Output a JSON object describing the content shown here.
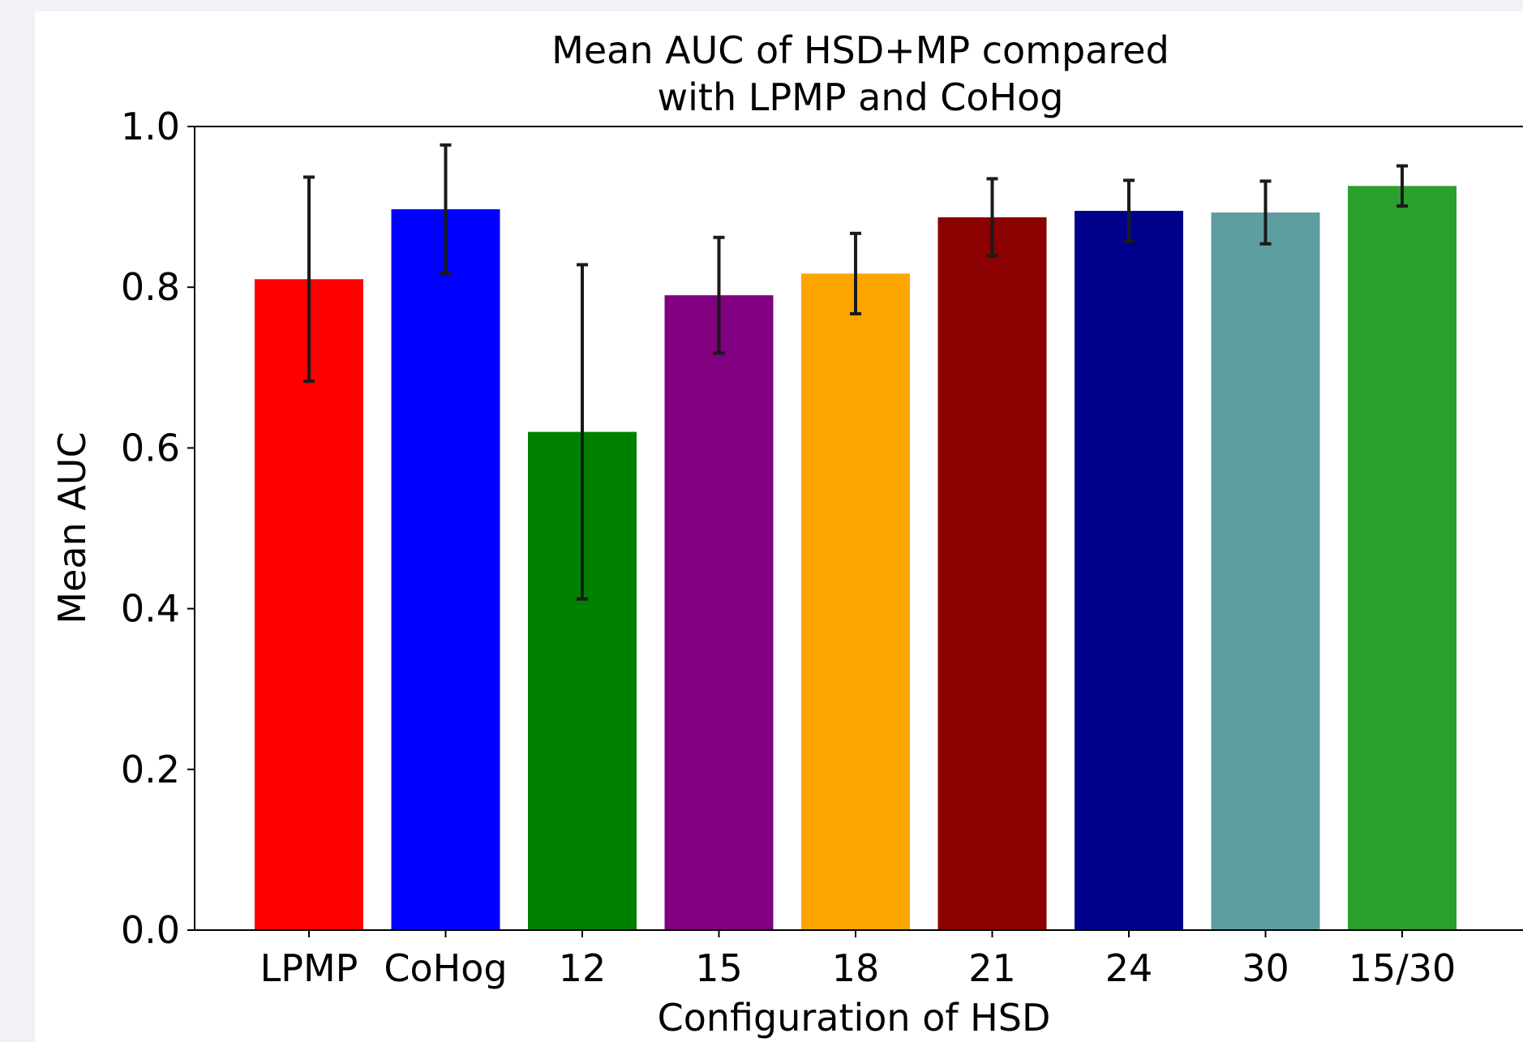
{
  "chart_data": {
    "type": "bar",
    "title_lines": [
      "Mean AUC of HSD+MP compared",
      "with LPMP and CoHog"
    ],
    "xlabel": "Configuration of HSD",
    "ylabel": "Mean AUC",
    "categories": [
      "LPMP",
      "CoHog",
      "12",
      "15",
      "18",
      "21",
      "24",
      "30",
      "15/30"
    ],
    "values": [
      0.81,
      0.897,
      0.62,
      0.79,
      0.817,
      0.887,
      0.895,
      0.893,
      0.926
    ],
    "error": [
      0.127,
      0.08,
      0.208,
      0.072,
      0.05,
      0.048,
      0.038,
      0.039,
      0.025
    ],
    "colors": [
      "#ff0000",
      "#0000ff",
      "#008000",
      "#800080",
      "#ffa500",
      "#8b0000",
      "#00008b",
      "#5f9ea0",
      "#2ca02c"
    ],
    "ylim": [
      0,
      1.0
    ],
    "yticks": [
      "0.0",
      "0.2",
      "0.4",
      "0.6",
      "0.8",
      "1.0"
    ],
    "ytick_values": [
      0,
      0.2,
      0.4,
      0.6,
      0.8,
      1.0
    ],
    "grid": false,
    "legend": "none"
  }
}
